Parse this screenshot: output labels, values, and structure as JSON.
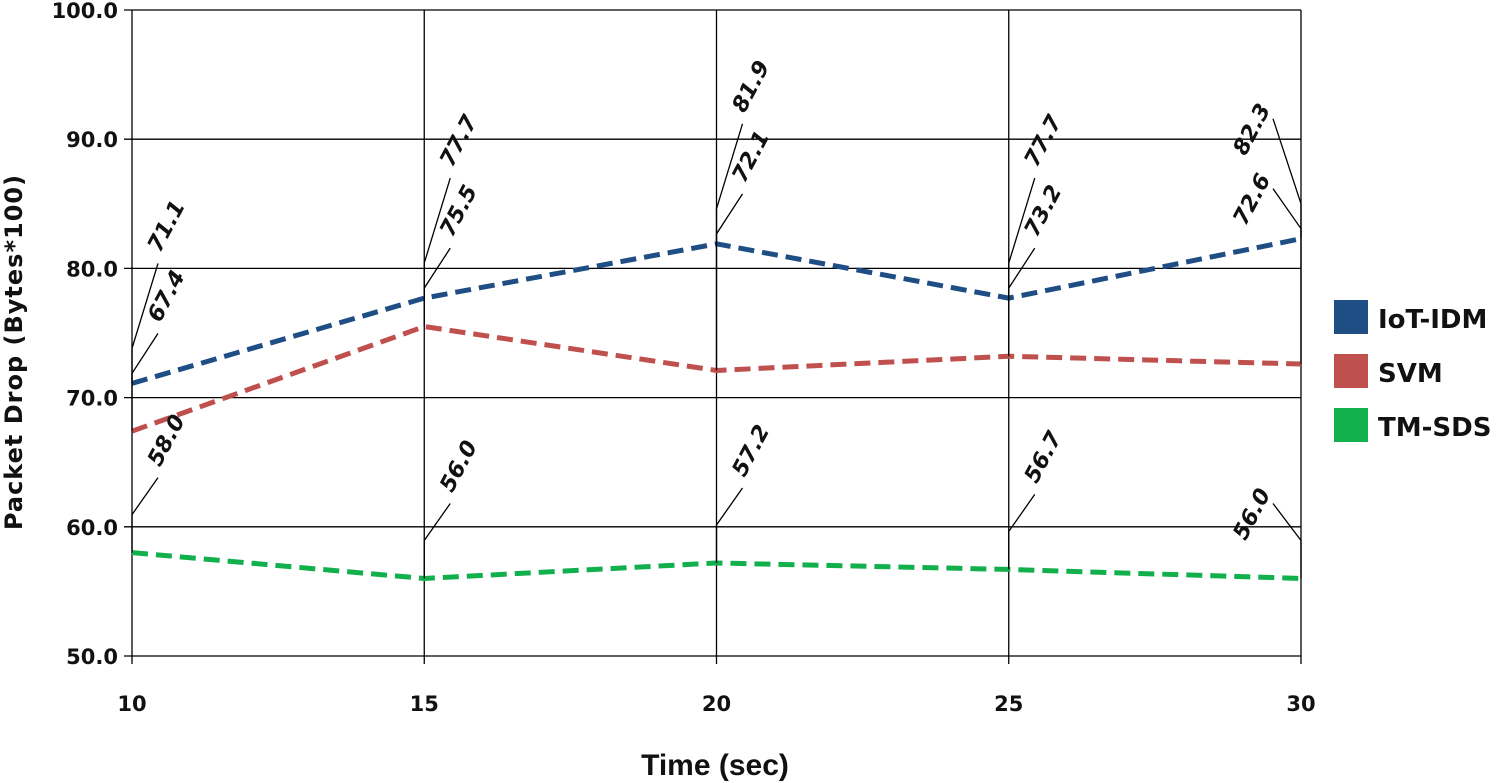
{
  "chart_data": {
    "type": "line",
    "xlabel": "Time (sec)",
    "ylabel": "Packet Drop (Bytes*100)",
    "x": [
      10,
      15,
      20,
      25,
      30
    ],
    "x_tick_labels": [
      "10",
      "15",
      "20",
      "25",
      "30"
    ],
    "xlim": [
      10,
      30
    ],
    "ylim": [
      50,
      100
    ],
    "y_ticks": [
      50,
      60,
      70,
      80,
      90,
      100
    ],
    "y_tick_labels": [
      "50.0",
      "60.0",
      "70.0",
      "80.0",
      "90.0",
      "100.0"
    ],
    "grid": true,
    "line_style": "dashed",
    "legend_position": "right",
    "series": [
      {
        "name": "IoT-IDM",
        "color": "#1f4e85",
        "values": [
          71.1,
          77.7,
          81.9,
          77.7,
          82.3
        ],
        "value_labels": [
          "71.1",
          "77.7",
          "81.9",
          "77.7",
          "82.3"
        ]
      },
      {
        "name": "SVM",
        "color": "#c0504d",
        "values": [
          67.4,
          75.5,
          72.1,
          73.2,
          72.6
        ],
        "value_labels": [
          "67.4",
          "75.5",
          "72.1",
          "73.2",
          "72.6"
        ]
      },
      {
        "name": "TM-SDS",
        "color": "#12b04c",
        "values": [
          58.0,
          56.0,
          57.2,
          56.7,
          56.0
        ],
        "value_labels": [
          "58.0",
          "56.0",
          "57.2",
          "56.7",
          "56.0"
        ]
      }
    ]
  }
}
